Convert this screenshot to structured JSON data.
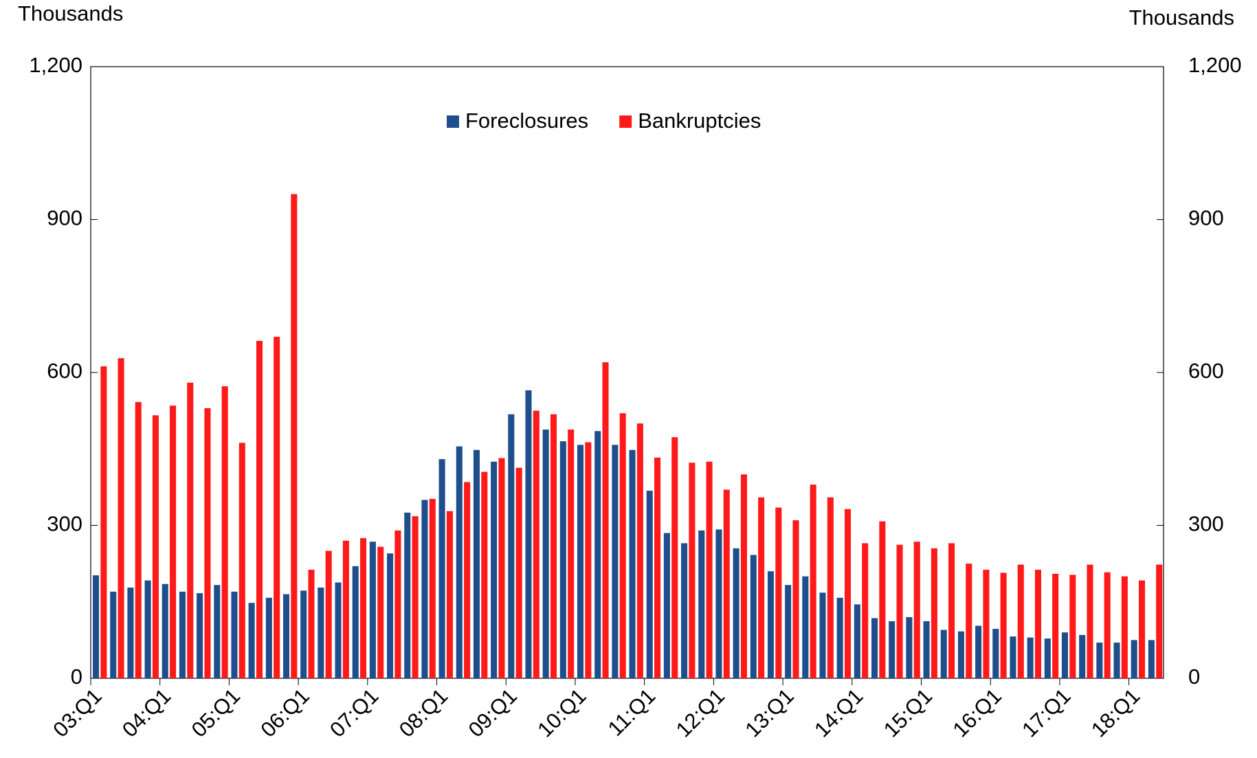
{
  "chart_data": {
    "type": "bar",
    "y_label": "Thousands",
    "y2_label": "Thousands",
    "categories": [
      "03:Q1",
      null,
      null,
      null,
      "04:Q1",
      null,
      null,
      null,
      "05:Q1",
      null,
      null,
      null,
      "06:Q1",
      null,
      null,
      null,
      "07:Q1",
      null,
      null,
      null,
      "08:Q1",
      null,
      null,
      null,
      "09:Q1",
      null,
      null,
      null,
      "10:Q1",
      null,
      null,
      null,
      "11:Q1",
      null,
      null,
      null,
      "12:Q1",
      null,
      null,
      null,
      "13:Q1",
      null,
      null,
      null,
      "14:Q1",
      null,
      null,
      null,
      "15:Q1",
      null,
      null,
      null,
      "16:Q1",
      null,
      null,
      null,
      "17:Q1",
      null,
      null,
      null,
      "18:Q1",
      null
    ],
    "series": [
      {
        "name": "Foreclosures",
        "color": "#1f4e8c",
        "values": [
          202,
          170,
          178,
          192,
          185,
          170,
          167,
          183,
          170,
          148,
          158,
          165,
          172,
          178,
          188,
          220,
          268,
          245,
          325,
          350,
          430,
          455,
          448,
          425,
          518,
          565,
          488,
          465,
          458,
          485,
          458,
          448,
          368,
          285,
          265,
          290,
          292,
          255,
          242,
          210,
          183,
          200,
          168,
          158,
          145,
          118,
          112,
          120,
          112,
          95,
          92,
          103,
          97,
          82,
          80,
          78,
          90,
          85,
          70,
          70,
          75,
          75
        ]
      },
      {
        "name": "Bankruptcies",
        "color": "#ff1a1a",
        "values": [
          612,
          628,
          542,
          516,
          535,
          580,
          530,
          573,
          462,
          662,
          670,
          950,
          213,
          250,
          270,
          275,
          258,
          290,
          318,
          352,
          328,
          385,
          405,
          432,
          413,
          525,
          518,
          488,
          463,
          620,
          520,
          500,
          433,
          473,
          423,
          425,
          370,
          400,
          355,
          335,
          310,
          380,
          355,
          332,
          265,
          308,
          262,
          268,
          255,
          265,
          225,
          213,
          207,
          223,
          213,
          205,
          203,
          223,
          208,
          200,
          192,
          223
        ]
      }
    ],
    "ylim": [
      0,
      1200
    ],
    "yticks": [
      0,
      300,
      600,
      900,
      {
        "value": 1200,
        "label": "1,200"
      }
    ],
    "y2lim": [
      0,
      1200
    ],
    "y2ticks": [
      0,
      300,
      600,
      900,
      {
        "value": 1200,
        "label": "1,200"
      }
    ],
    "legend": "top"
  }
}
